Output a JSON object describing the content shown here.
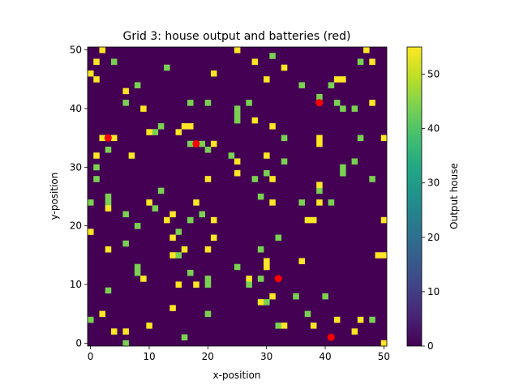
{
  "chart_data": {
    "type": "heatmap",
    "title": "Grid 3: house output and batteries (red)",
    "xlabel": "x-position",
    "ylabel": "y-position",
    "xlim": [
      -0.5,
      50.5
    ],
    "ylim": [
      -0.5,
      50.5
    ],
    "x_ticks": [
      0,
      10,
      20,
      30,
      40,
      50
    ],
    "y_ticks": [
      0,
      10,
      20,
      30,
      40,
      50
    ],
    "colorbar": {
      "label": "Output house",
      "colormap": "viridis",
      "range": [
        0,
        55
      ],
      "ticks": [
        0,
        10,
        20,
        30,
        40,
        50
      ]
    },
    "background_color": "#440154",
    "high_color": "#fde725",
    "mid_color": "#7ad151",
    "battery_color": "#ff0000",
    "houses": [
      [
        2,
        50,
        55
      ],
      [
        25,
        50,
        55
      ],
      [
        47,
        50,
        55
      ],
      [
        1,
        48,
        55
      ],
      [
        4,
        48,
        45
      ],
      [
        28,
        48,
        55
      ],
      [
        31,
        49,
        45
      ],
      [
        46,
        48,
        45
      ],
      [
        48,
        48,
        55
      ],
      [
        0,
        46,
        55
      ],
      [
        13,
        47,
        45
      ],
      [
        21,
        46,
        55
      ],
      [
        33,
        47,
        55
      ],
      [
        1,
        45,
        55
      ],
      [
        6,
        43,
        55
      ],
      [
        8,
        44,
        45
      ],
      [
        30,
        45,
        55
      ],
      [
        36,
        44,
        45
      ],
      [
        41,
        44,
        45
      ],
      [
        42,
        45,
        55
      ],
      [
        43,
        45,
        55
      ],
      [
        6,
        41,
        45
      ],
      [
        9,
        40,
        55
      ],
      [
        17,
        41,
        45
      ],
      [
        20,
        41,
        45
      ],
      [
        25,
        40,
        45
      ],
      [
        27,
        41,
        45
      ],
      [
        39,
        42,
        45
      ],
      [
        42,
        41,
        45
      ],
      [
        43,
        40,
        45
      ],
      [
        45,
        40,
        45
      ],
      [
        48,
        41,
        55
      ],
      [
        11,
        36,
        45
      ],
      [
        10,
        36,
        55
      ],
      [
        12,
        37,
        45
      ],
      [
        15,
        36,
        55
      ],
      [
        16,
        37,
        55
      ],
      [
        17,
        37,
        55
      ],
      [
        25,
        39,
        45
      ],
      [
        25,
        38,
        45
      ],
      [
        28,
        38,
        55
      ],
      [
        31,
        37,
        55
      ],
      [
        39,
        35,
        55
      ],
      [
        39,
        34,
        55
      ],
      [
        46,
        35,
        45
      ],
      [
        50,
        35,
        55
      ],
      [
        2,
        35,
        55
      ],
      [
        4,
        35,
        55
      ],
      [
        3,
        33,
        45
      ],
      [
        17,
        34,
        45
      ],
      [
        19,
        34,
        45
      ],
      [
        20,
        33,
        45
      ],
      [
        21,
        34,
        55
      ],
      [
        24,
        32,
        45
      ],
      [
        25,
        31,
        55
      ],
      [
        30,
        32,
        55
      ],
      [
        33,
        35,
        45
      ],
      [
        33,
        31,
        45
      ],
      [
        1,
        32,
        55
      ],
      [
        7,
        32,
        55
      ],
      [
        1,
        30,
        45
      ],
      [
        1,
        28,
        45
      ],
      [
        25,
        29,
        55
      ],
      [
        30,
        29,
        45
      ],
      [
        28,
        28,
        45
      ],
      [
        31,
        28,
        55
      ],
      [
        20,
        28,
        55
      ],
      [
        43,
        30,
        45
      ],
      [
        43,
        29,
        45
      ],
      [
        45,
        31,
        45
      ],
      [
        48,
        28,
        45
      ],
      [
        0,
        24,
        45
      ],
      [
        3,
        25,
        45
      ],
      [
        3,
        24,
        45
      ],
      [
        3,
        23,
        55
      ],
      [
        6,
        22,
        45
      ],
      [
        10,
        24,
        55
      ],
      [
        11,
        23,
        45
      ],
      [
        12,
        26,
        45
      ],
      [
        18,
        24,
        55
      ],
      [
        19,
        22,
        45
      ],
      [
        14,
        22,
        55
      ],
      [
        17,
        21,
        45
      ],
      [
        21,
        21,
        55
      ],
      [
        29,
        25,
        45
      ],
      [
        31,
        24,
        55
      ],
      [
        36,
        24,
        45
      ],
      [
        39,
        26,
        45
      ],
      [
        39,
        24,
        55
      ],
      [
        41,
        24,
        45
      ],
      [
        39,
        27,
        55
      ],
      [
        0,
        19,
        55
      ],
      [
        6,
        17,
        45
      ],
      [
        8,
        20,
        45
      ],
      [
        14,
        18,
        55
      ],
      [
        15,
        19,
        45
      ],
      [
        13,
        21,
        55
      ],
      [
        21,
        18,
        55
      ],
      [
        32,
        18,
        45
      ],
      [
        37,
        21,
        55
      ],
      [
        38,
        21,
        55
      ],
      [
        50,
        21,
        55
      ],
      [
        3,
        16,
        55
      ],
      [
        14,
        15,
        55
      ],
      [
        15,
        15,
        45
      ],
      [
        16,
        16,
        55
      ],
      [
        20,
        16,
        55
      ],
      [
        29,
        16,
        45
      ],
      [
        30,
        14,
        55
      ],
      [
        30,
        13,
        55
      ],
      [
        36,
        14,
        55
      ],
      [
        49,
        15,
        55
      ],
      [
        50,
        15,
        55
      ],
      [
        8,
        13,
        45
      ],
      [
        8,
        12,
        45
      ],
      [
        9,
        11,
        55
      ],
      [
        17,
        12,
        45
      ],
      [
        15,
        10,
        55
      ],
      [
        18,
        10,
        55
      ],
      [
        20,
        11,
        45
      ],
      [
        20,
        10,
        45
      ],
      [
        25,
        13,
        45
      ],
      [
        27,
        11,
        55
      ],
      [
        27,
        10,
        45
      ],
      [
        29,
        11,
        45
      ],
      [
        3,
        9,
        45
      ],
      [
        14,
        6,
        55
      ],
      [
        20,
        5,
        45
      ],
      [
        29,
        7,
        55
      ],
      [
        30,
        7,
        45
      ],
      [
        31,
        8,
        55
      ],
      [
        35,
        8,
        45
      ],
      [
        37,
        5,
        45
      ],
      [
        38,
        3,
        55
      ],
      [
        40,
        8,
        45
      ],
      [
        42,
        4,
        55
      ],
      [
        45,
        2,
        55
      ],
      [
        46,
        4,
        55
      ],
      [
        48,
        4,
        45
      ],
      [
        0,
        4,
        45
      ],
      [
        2,
        5,
        55
      ],
      [
        4,
        2,
        55
      ],
      [
        6,
        2,
        55
      ],
      [
        6,
        0,
        45
      ],
      [
        10,
        3,
        55
      ],
      [
        16,
        1,
        45
      ],
      [
        32,
        3,
        45
      ],
      [
        33,
        3,
        55
      ],
      [
        50,
        0,
        55
      ]
    ],
    "batteries": [
      [
        3,
        35
      ],
      [
        18,
        34
      ],
      [
        39,
        41
      ],
      [
        32,
        11
      ],
      [
        41,
        1
      ]
    ]
  }
}
